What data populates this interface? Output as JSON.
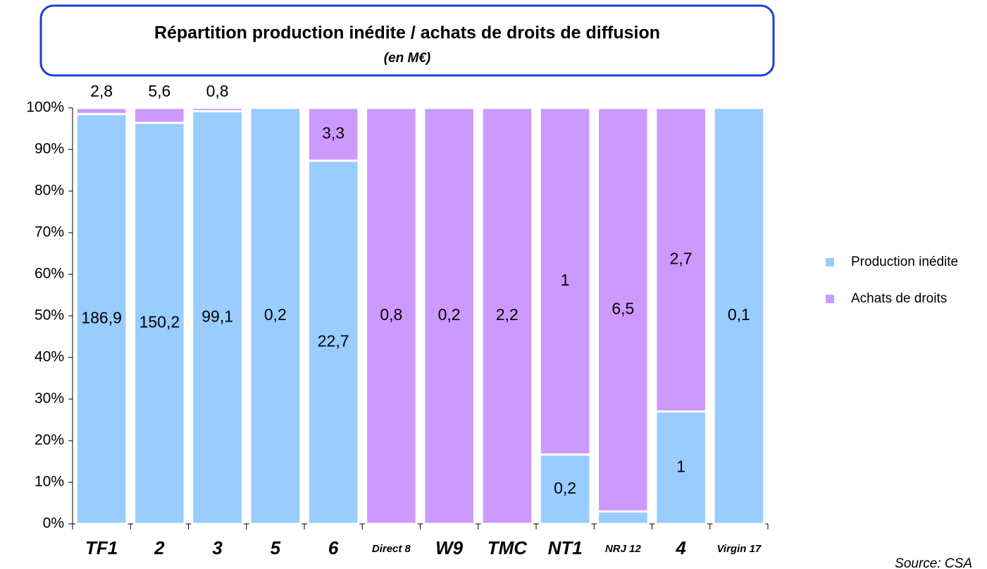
{
  "chart_data": {
    "type": "bar",
    "stack": "percent",
    "title": "Répartition production inédite / achats de droits de diffusion",
    "subtitle": "(en M€)",
    "categories": [
      "TF1",
      "2",
      "3",
      "5",
      "6",
      "Direct 8",
      "W9",
      "TMC",
      "NT1",
      "NRJ 12",
      "4",
      "Virgin 17"
    ],
    "series": [
      {
        "name": "Production inédite",
        "color": "#99ccff",
        "values": [
          186.9,
          150.2,
          99.1,
          0.2,
          22.7,
          0,
          0,
          0,
          0.2,
          0.2,
          1,
          0.1
        ],
        "value_labels": [
          "186,9",
          "150,2",
          "99,1",
          "0,2",
          "22,7",
          null,
          null,
          null,
          "0,2",
          "0,2",
          "1",
          "0,1"
        ]
      },
      {
        "name": "Achats de droits",
        "color": "#cc99ff",
        "values": [
          2.8,
          5.6,
          0.8,
          0,
          3.3,
          0.8,
          0.2,
          2.2,
          1,
          6.5,
          2.7,
          0
        ],
        "value_labels": [
          "2,8",
          "5,6",
          "0,8",
          null,
          "3,3",
          "0,8",
          "0,2",
          "2,2",
          "1",
          "6,5",
          "2,7",
          null
        ]
      }
    ],
    "ylim": [
      0,
      100
    ],
    "yticks": [
      {
        "value": 0,
        "label": "0%"
      },
      {
        "value": 10,
        "label": "10%"
      },
      {
        "value": 20,
        "label": "20%"
      },
      {
        "value": 30,
        "label": "30%"
      },
      {
        "value": 40,
        "label": "40%"
      },
      {
        "value": 50,
        "label": "50%"
      },
      {
        "value": 60,
        "label": "60%"
      },
      {
        "value": 70,
        "label": "70%"
      },
      {
        "value": 80,
        "label": "80%"
      },
      {
        "value": 90,
        "label": "90%"
      },
      {
        "value": 100,
        "label": "100%"
      }
    ],
    "legend": "right",
    "source": "Source: CSA"
  }
}
